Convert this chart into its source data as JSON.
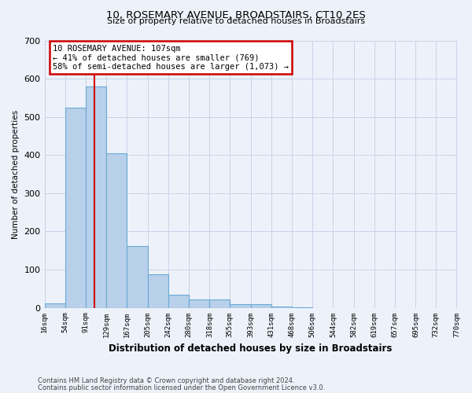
{
  "title": "10, ROSEMARY AVENUE, BROADSTAIRS, CT10 2ES",
  "subtitle": "Size of property relative to detached houses in Broadstairs",
  "xlabel": "Distribution of detached houses by size in Broadstairs",
  "ylabel": "Number of detached properties",
  "bin_edges": [
    16,
    54,
    91,
    129,
    167,
    205,
    242,
    280,
    318,
    355,
    393,
    431,
    468,
    506,
    544,
    582,
    619,
    657,
    695,
    732,
    770
  ],
  "bin_labels": [
    "16sqm",
    "54sqm",
    "91sqm",
    "129sqm",
    "167sqm",
    "205sqm",
    "242sqm",
    "280sqm",
    "318sqm",
    "355sqm",
    "393sqm",
    "431sqm",
    "468sqm",
    "506sqm",
    "544sqm",
    "582sqm",
    "619sqm",
    "657sqm",
    "695sqm",
    "732sqm",
    "770sqm"
  ],
  "bar_heights": [
    12,
    525,
    580,
    405,
    162,
    88,
    35,
    22,
    22,
    10,
    10,
    3,
    2,
    0,
    0,
    0,
    0,
    0,
    0,
    0
  ],
  "bar_color": "#b8d0ea",
  "bar_edge_color": "#6aaad4",
  "property_value": 107,
  "red_line_x": 107,
  "annotation_title": "10 ROSEMARY AVENUE: 107sqm",
  "annotation_line1": "← 41% of detached houses are smaller (769)",
  "annotation_line2": "58% of semi-detached houses are larger (1,073) →",
  "annotation_box_facecolor": "#ffffff",
  "annotation_box_edgecolor": "#cc0000",
  "red_line_color": "#cc0000",
  "ylim": [
    0,
    700
  ],
  "yticks": [
    0,
    100,
    200,
    300,
    400,
    500,
    600,
    700
  ],
  "grid_color": "#c8d4e8",
  "bg_color": "#edf2fa",
  "footnote1": "Contains HM Land Registry data © Crown copyright and database right 2024.",
  "footnote2": "Contains public sector information licensed under the Open Government Licence v3.0."
}
